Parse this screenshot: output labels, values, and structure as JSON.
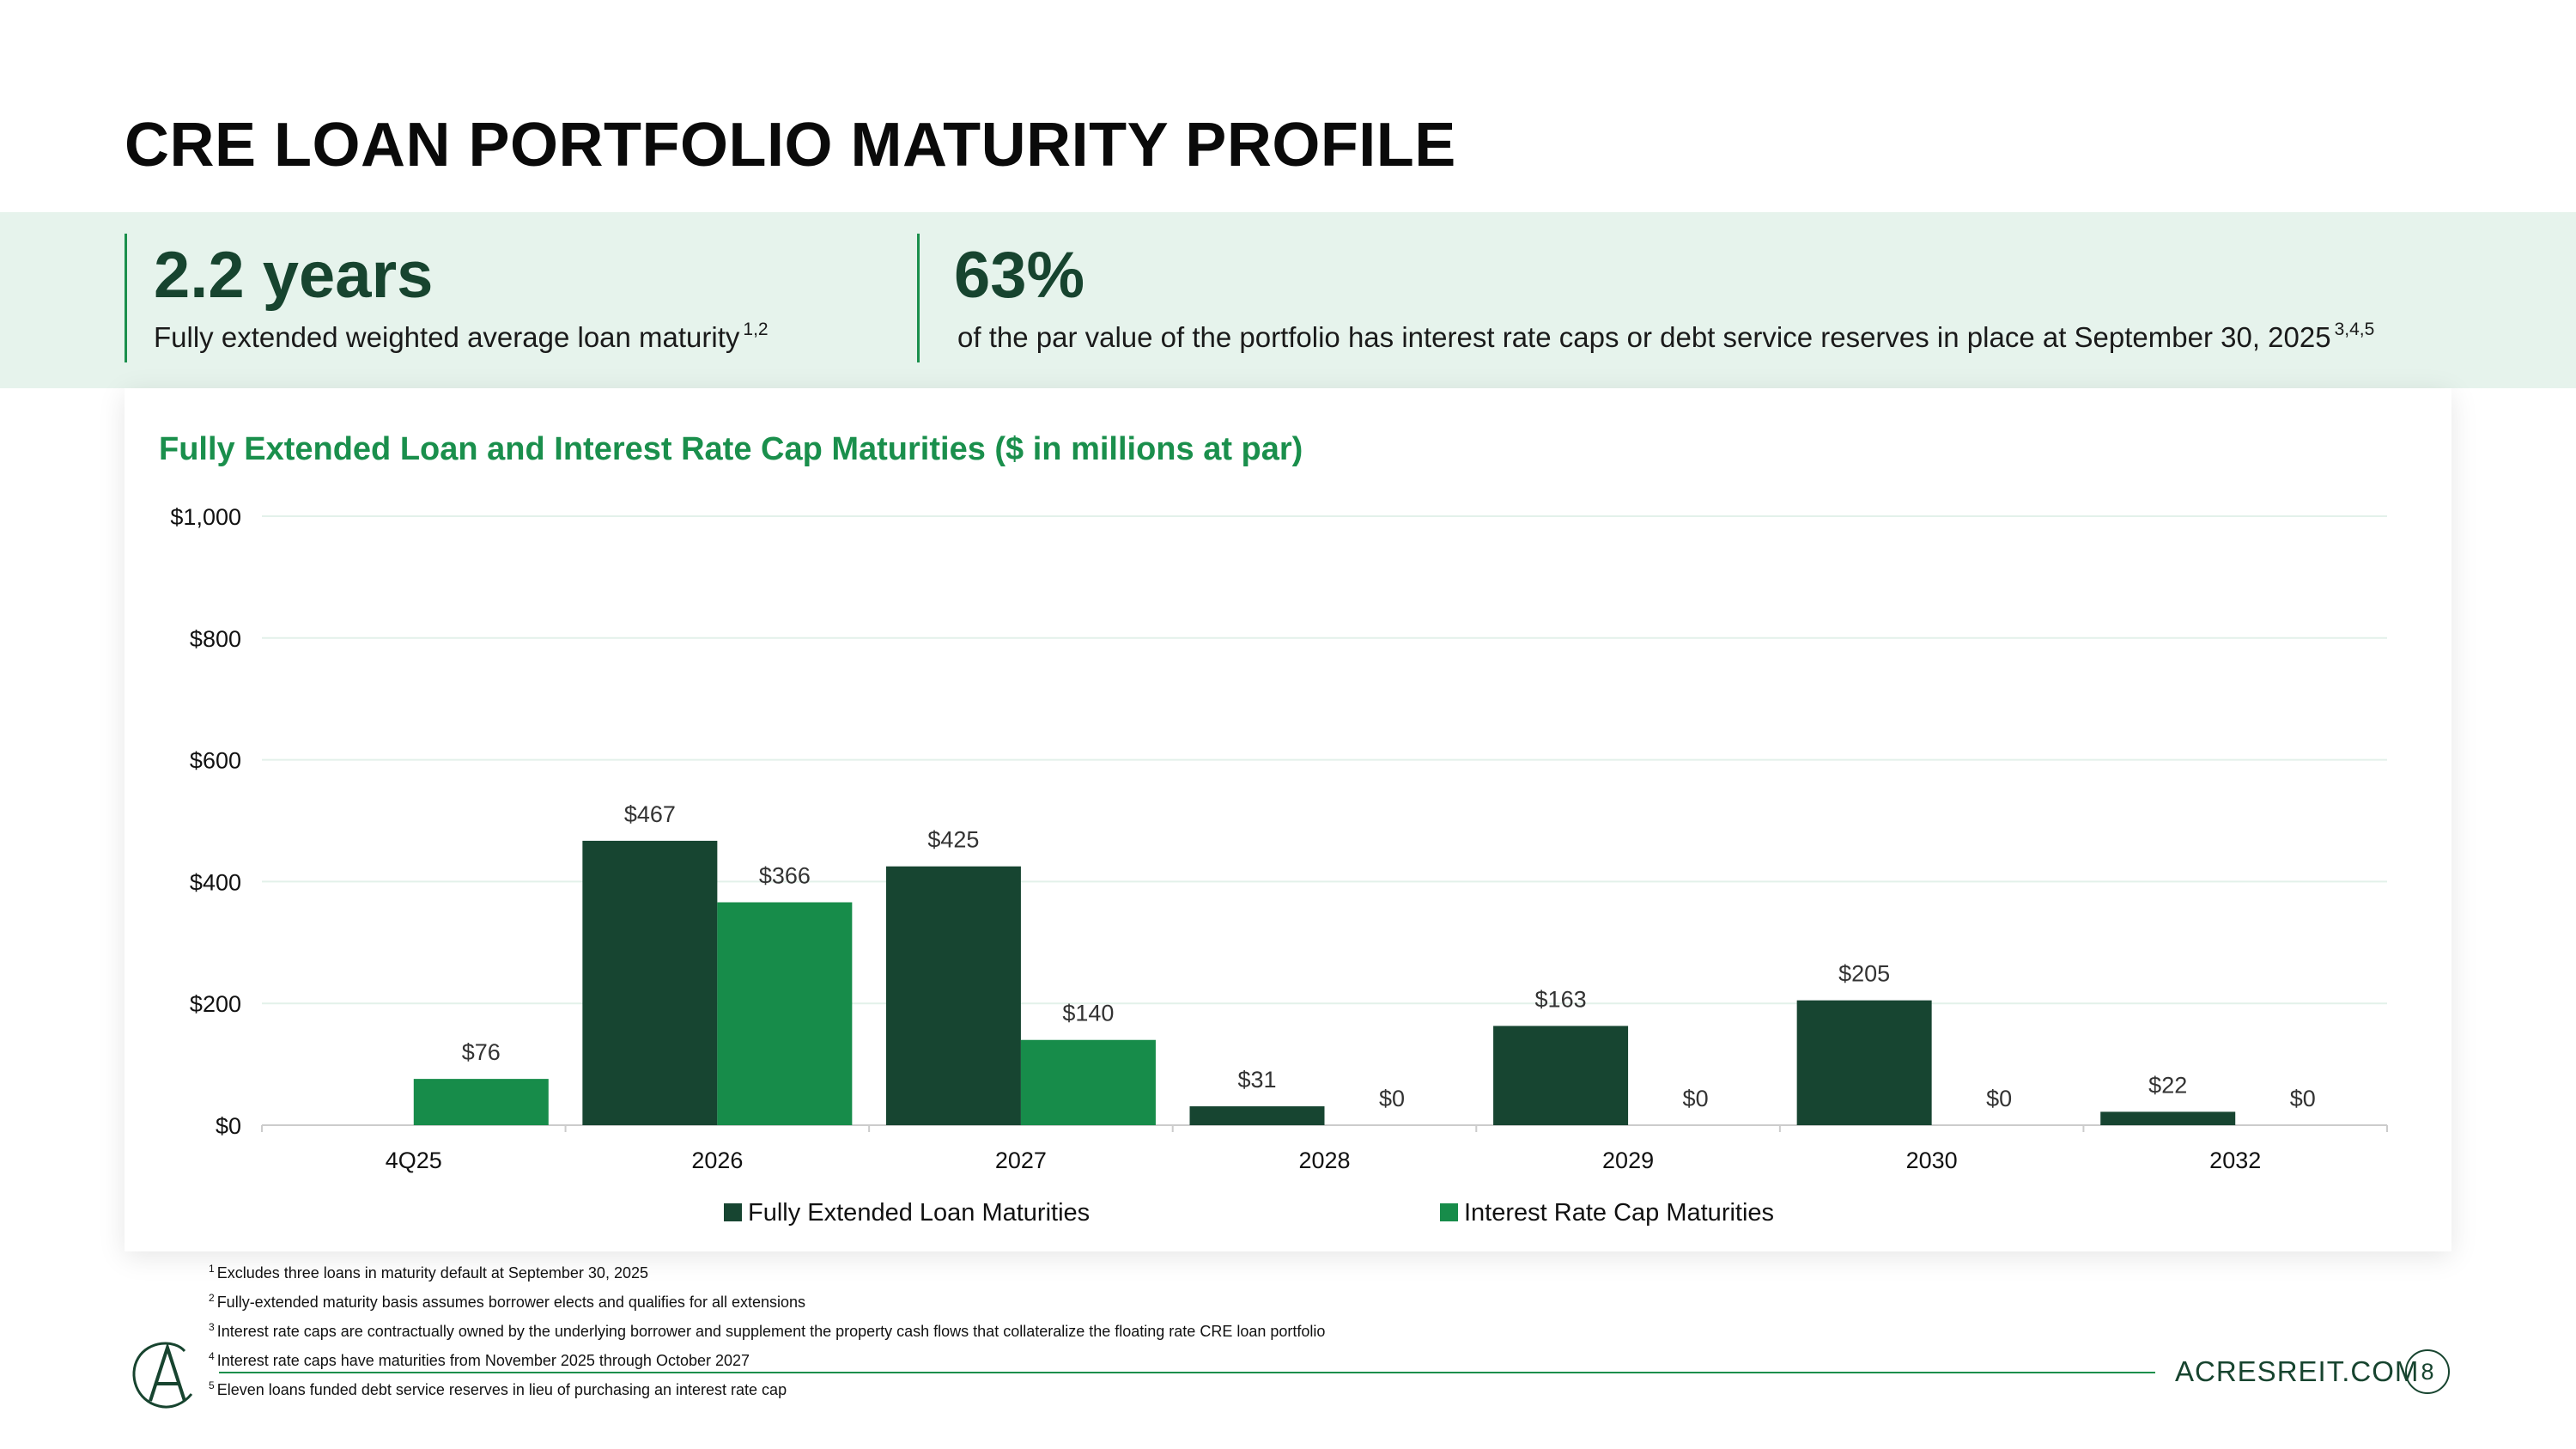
{
  "page": {
    "title": "CRE LOAN PORTFOLIO MATURITY PROFILE"
  },
  "kpis": [
    {
      "value": "2.2 years",
      "description": "Fully extended weighted average loan maturity",
      "superscript": "1,2"
    },
    {
      "value": "63%",
      "description": "of the par value of the portfolio has interest rate caps or debt service reserves in place at September 30, 2025",
      "superscript": "3,4,5"
    }
  ],
  "chart_data": {
    "type": "bar",
    "title": "Fully Extended Loan and Interest Rate Cap Maturities ($ in millions at par)",
    "categories": [
      "4Q25",
      "2026",
      "2027",
      "2028",
      "2029",
      "2030",
      "2032"
    ],
    "series": [
      {
        "name": "Fully Extended Loan Maturities",
        "color": "#174531",
        "values": [
          null,
          467,
          425,
          31,
          163,
          205,
          22
        ],
        "labels": [
          "",
          "$467",
          "$425",
          "$31",
          "$163",
          "$205",
          "$22"
        ]
      },
      {
        "name": "Interest Rate Cap Maturities",
        "color": "#178c4a",
        "values": [
          76,
          366,
          140,
          0,
          0,
          0,
          0
        ],
        "labels": [
          "$76",
          "$366",
          "$140",
          "$0",
          "$0",
          "$0",
          "$0"
        ]
      }
    ],
    "ylim": [
      0,
      1000
    ],
    "yticks": [
      0,
      200,
      400,
      600,
      800,
      1000
    ],
    "ytick_labels": [
      "$0",
      "$200",
      "$400",
      "$600",
      "$800",
      "$1,000"
    ],
    "xlabel": "",
    "ylabel": "",
    "grid": true,
    "legend_position": "bottom"
  },
  "footnotes": [
    {
      "num": "1",
      "text": "Excludes three loans in maturity default at September 30, 2025"
    },
    {
      "num": "2",
      "text": "Fully-extended maturity basis assumes borrower elects and qualifies for all extensions"
    },
    {
      "num": "3",
      "text": "Interest rate caps are contractually owned by the underlying borrower and supplement the property cash flows that collateralize the floating rate CRE loan portfolio"
    },
    {
      "num": "4",
      "text": "Interest rate caps have maturities from November 2025 through October 2027"
    },
    {
      "num": "5",
      "text": "Eleven loans funded debt service reserves in lieu of purchasing an interest rate cap"
    }
  ],
  "footer": {
    "website": "ACRESREIT.COM",
    "page_number": "8",
    "logo_letter": "A"
  },
  "colors": {
    "accent": "#1a8f4c",
    "dark_green": "#17442f",
    "band": "#e6f3ec"
  }
}
